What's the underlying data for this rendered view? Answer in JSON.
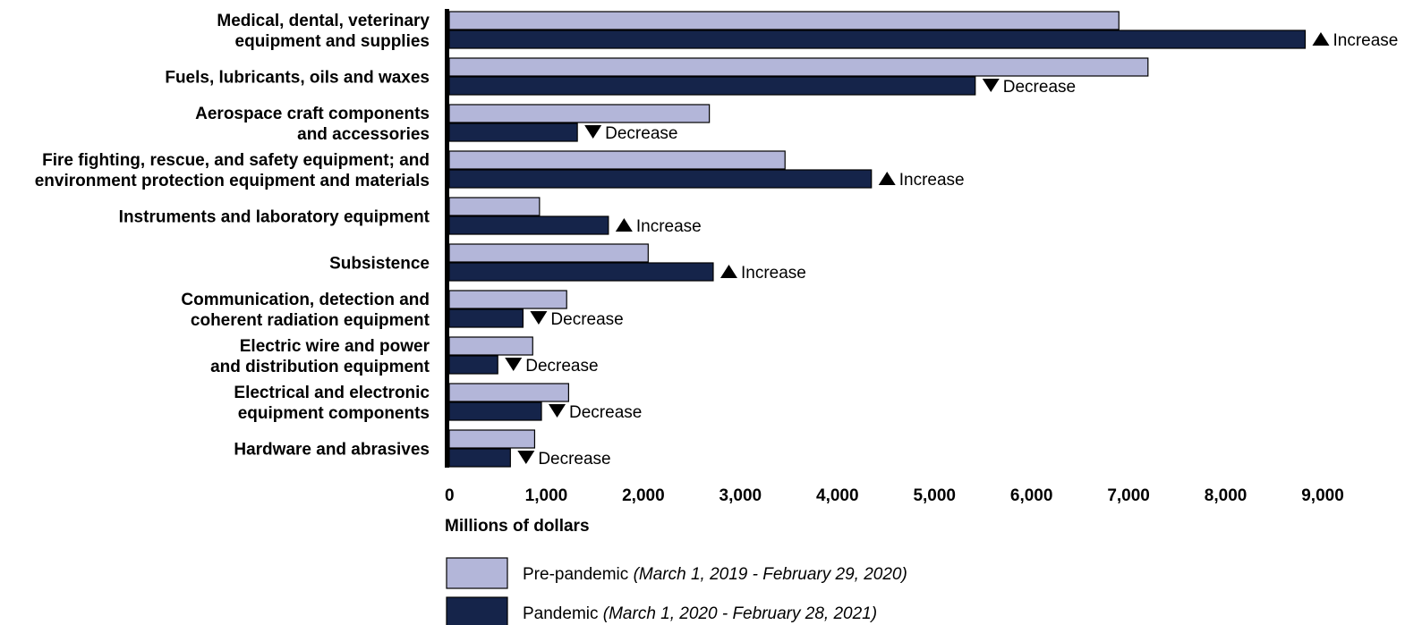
{
  "chart_data": {
    "type": "bar",
    "orientation": "horizontal",
    "categories": [
      [
        "Medical, dental, veterinary",
        "equipment and supplies"
      ],
      [
        "Fuels, lubricants, oils and waxes"
      ],
      [
        "Aerospace craft components",
        "and accessories"
      ],
      [
        "Fire fighting, rescue, and safety equipment; and",
        "environment protection equipment and materials"
      ],
      [
        "Instruments and laboratory equipment"
      ],
      [
        "Subsistence"
      ],
      [
        "Communication, detection and",
        "coherent radiation equipment"
      ],
      [
        "Electric wire and power",
        "and distribution  equipment"
      ],
      [
        "Electrical and electronic",
        "equipment components"
      ],
      [
        "Hardware and abrasives"
      ]
    ],
    "series": [
      {
        "name": "Pre-pandemic",
        "period": "(March 1, 2019 - February 29, 2020)",
        "color": "#b3b6d9",
        "values": [
          6900,
          7200,
          2680,
          3460,
          930,
          2050,
          1210,
          860,
          1230,
          880
        ]
      },
      {
        "name": "Pandemic",
        "period": "(March 1, 2020 - February 28, 2021)",
        "color": "#15244a",
        "values": [
          8820,
          5420,
          1320,
          4350,
          1640,
          2720,
          760,
          500,
          950,
          630
        ]
      }
    ],
    "changes": [
      "Increase",
      "Decrease",
      "Decrease",
      "Increase",
      "Increase",
      "Increase",
      "Decrease",
      "Decrease",
      "Decrease",
      "Decrease"
    ],
    "xlabel": "Millions of dollars",
    "xlim": [
      0,
      9000
    ],
    "xticks": [
      0,
      1000,
      2000,
      3000,
      4000,
      5000,
      6000,
      7000,
      8000,
      9000
    ],
    "xtick_labels": [
      "0",
      "1,000",
      "2,000",
      "3,000",
      "4,000",
      "5,000",
      "6,000",
      "7,000",
      "8,000",
      "9,000"
    ],
    "grid": false,
    "legend_position": "bottom"
  }
}
